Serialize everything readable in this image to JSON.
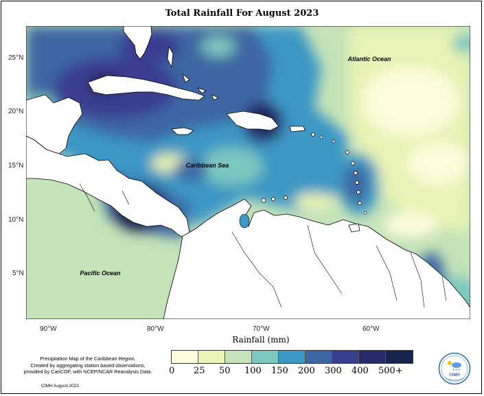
{
  "title": "Total Rainfall For August 2023",
  "x_axis_label": "Rainfall (mm)",
  "map_labels": {
    "atlantic": "Atlantic Ocean",
    "caribbean": "Caribbean Sea",
    "pacific": "Pacific Ocean"
  },
  "latitude_ticks": [
    "25°N",
    "20°N",
    "15°N",
    "10°N",
    "5°N"
  ],
  "longitude_ticks": [
    "90°W",
    "80°W",
    "70°W",
    "60°W"
  ],
  "legend": {
    "labels": [
      "0",
      "25",
      "50",
      "100",
      "150",
      "200",
      "300",
      "400",
      "500+"
    ],
    "colors": [
      "#fdfcdc",
      "#e8f3b5",
      "#c4e3b8",
      "#7cc7bf",
      "#3d97c5",
      "#3d66a3",
      "#3a3e90",
      "#262a6b",
      "#16234d"
    ]
  },
  "footnote": {
    "line1": "Precipitation Map of the Caribbean Region.",
    "line2": "Created by aggregating station based observations,",
    "line3": "provided by CariCOF, with NCEP/NCAR Reanalysis Data."
  },
  "credit": "CIMH August-2023",
  "logo_text": "CIMH"
}
